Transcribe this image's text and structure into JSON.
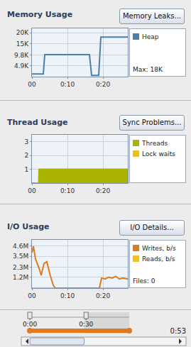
{
  "chart_data": [
    {
      "type": "line",
      "title": "Memory Usage",
      "button": "Memory Leaks...",
      "annotations": [
        "Max: 18K"
      ],
      "grid": true,
      "xlim": [
        0,
        27
      ],
      "xticks": [
        {
          "value": 0,
          "label": "00"
        },
        {
          "value": 10,
          "label": "0:10"
        },
        {
          "value": 20,
          "label": "0:20"
        }
      ],
      "ylim": [
        0,
        22000
      ],
      "yticks": [
        {
          "value": 4900,
          "label": "4.9K"
        },
        {
          "value": 9800,
          "label": "9.8K"
        },
        {
          "value": 15000,
          "label": "15K"
        },
        {
          "value": 20000,
          "label": "20K"
        }
      ],
      "series": [
        {
          "name": "Heap",
          "color": "#4f7fa6",
          "x": [
            0,
            3.2,
            3.6,
            16.2,
            16.8,
            18.8,
            19.4,
            27
          ],
          "values": [
            1200,
            1200,
            10000,
            10000,
            600,
            600,
            18000,
            18000
          ]
        }
      ]
    },
    {
      "type": "area",
      "title": "Thread Usage",
      "button": "Sync Problems...",
      "grid": true,
      "xlim": [
        0,
        27
      ],
      "xticks": [
        {
          "value": 0,
          "label": "00"
        },
        {
          "value": 10,
          "label": "0:10"
        },
        {
          "value": 20,
          "label": "0:20"
        }
      ],
      "ylim": [
        0,
        3.5
      ],
      "yticks": [
        1,
        2,
        3
      ],
      "series": [
        {
          "name": "Threads",
          "color": "#a9b300",
          "x": [
            0,
            1.9,
            2,
            27
          ],
          "values": [
            0,
            0,
            1,
            1
          ]
        },
        {
          "name": "Lock waits",
          "color": "#e8c21a",
          "x": [
            0,
            27
          ],
          "values": [
            0,
            0
          ]
        }
      ]
    },
    {
      "type": "line",
      "title": "I/O Usage",
      "button": "I/O Details...",
      "annotations": [
        "Files: 0"
      ],
      "grid": true,
      "xlim": [
        0,
        27
      ],
      "xticks": [
        {
          "value": 0,
          "label": "00"
        },
        {
          "value": 10,
          "label": "0:10"
        },
        {
          "value": 20,
          "label": "0:20"
        }
      ],
      "ylim": [
        0,
        5300000
      ],
      "yticks": [
        {
          "value": 1200000,
          "label": "1.2M"
        },
        {
          "value": 2300000,
          "label": "2.3M"
        },
        {
          "value": 3500000,
          "label": "3.5M"
        },
        {
          "value": 4600000,
          "label": "4.6M"
        }
      ],
      "series": [
        {
          "name": "Writes, b/s",
          "color": "#e07a1f",
          "x": [
            0,
            0.4,
            1,
            2,
            2.6,
            3.4,
            4.2,
            5,
            6,
            6.6,
            19,
            19.6,
            20.6,
            21.6,
            22.6,
            23.6,
            24.6,
            25.6,
            27
          ],
          "values": [
            3900000,
            4600000,
            3200000,
            2200000,
            1400000,
            2700000,
            2900000,
            1600000,
            300000,
            0,
            0,
            1100000,
            1000000,
            1200000,
            1100000,
            1300000,
            1000000,
            1100000,
            1000000
          ]
        },
        {
          "name": "Reads, b/s",
          "color": "#f0c419",
          "x": [
            0,
            27
          ],
          "values": [
            0,
            0
          ]
        }
      ]
    }
  ],
  "timeline": {
    "ticks": [
      {
        "value": 0,
        "label": "0:00"
      },
      {
        "value": 30,
        "label": "0:30"
      }
    ],
    "end": 53,
    "end_label": "0:53",
    "window": [
      29,
      53
    ]
  }
}
